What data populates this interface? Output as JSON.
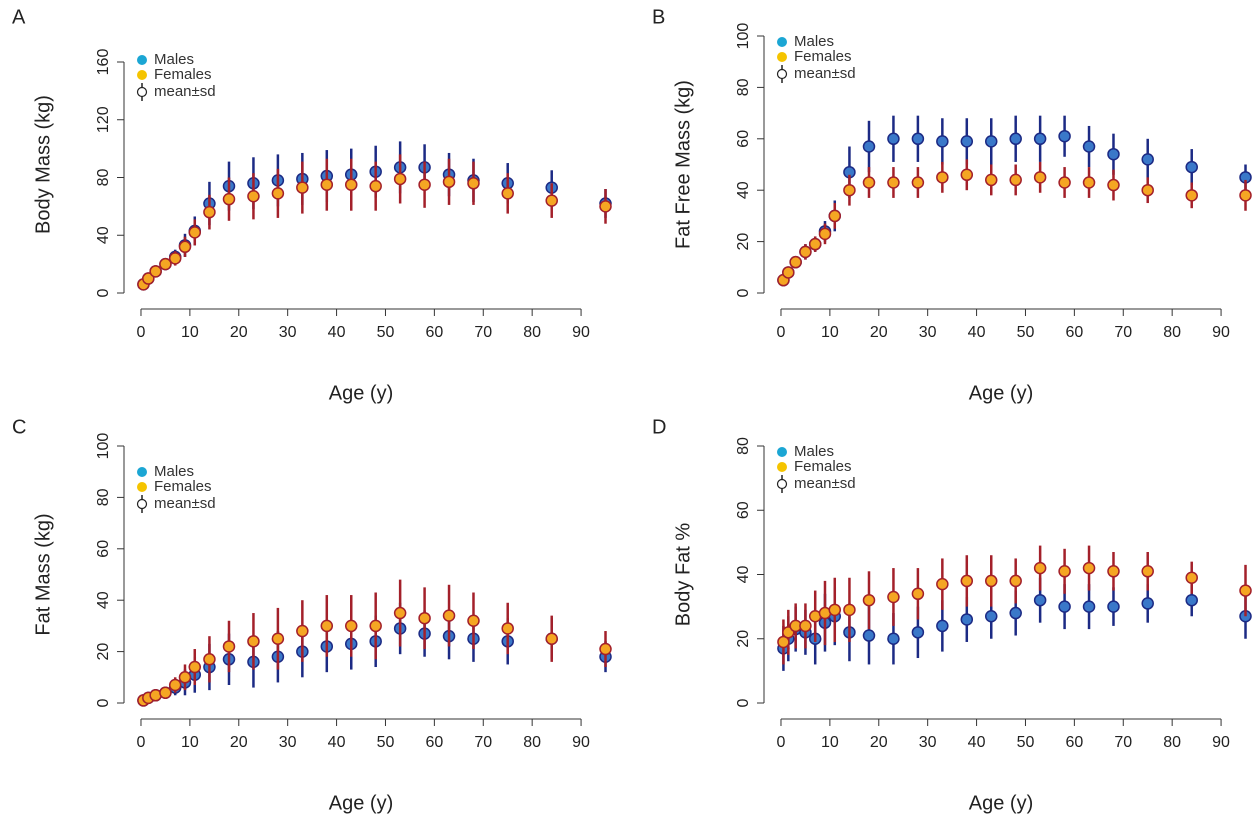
{
  "chart_data": [
    {
      "type": "scatter",
      "panel_label": "A",
      "ylabel": "Body Mass (kg)",
      "xlabel": "Age (y)",
      "error_label": "mean±sd",
      "legend": "top-left",
      "xlim": [
        -2,
        96
      ],
      "ylim": [
        0,
        178
      ],
      "xticks": [
        0,
        10,
        20,
        30,
        40,
        50,
        60,
        70,
        80,
        90
      ],
      "yticks": [
        0,
        40,
        80,
        120,
        160
      ],
      "x": [
        0.5,
        1.5,
        3,
        5,
        7,
        9,
        11,
        14,
        18,
        23,
        28,
        33,
        38,
        43,
        48,
        53,
        58,
        63,
        68,
        75,
        84,
        95
      ],
      "series": [
        {
          "name": "Males",
          "color": "#1ba6d4",
          "mean_color": "#3a78c9",
          "bar_color": "#1c2a84",
          "values": [
            6,
            10,
            15,
            20,
            25,
            33,
            43,
            62,
            74,
            76,
            78,
            79,
            81,
            82,
            84,
            87,
            87,
            82,
            78,
            76,
            73,
            62
          ],
          "sd": [
            2,
            2,
            3,
            4,
            5,
            8,
            10,
            15,
            17,
            18,
            18,
            18,
            18,
            18,
            18,
            18,
            16,
            15,
            15,
            14,
            12,
            10
          ]
        },
        {
          "name": "Females",
          "color": "#f5c400",
          "mean_color": "#f5a623",
          "bar_color": "#a3202a",
          "values": [
            6,
            10,
            15,
            20,
            24,
            32,
            42,
            56,
            65,
            67,
            69,
            73,
            75,
            75,
            74,
            79,
            75,
            77,
            76,
            69,
            64,
            60
          ],
          "sd": [
            2,
            2,
            3,
            4,
            5,
            7,
            9,
            12,
            15,
            16,
            17,
            18,
            18,
            18,
            17,
            17,
            16,
            16,
            15,
            14,
            12,
            12
          ]
        }
      ]
    },
    {
      "type": "scatter",
      "panel_label": "B",
      "ylabel": "Fat Free Mass (kg)",
      "xlabel": "Age (y)",
      "error_label": "mean±sd",
      "legend": "top-left",
      "xlim": [
        -2,
        96
      ],
      "ylim": [
        0,
        100
      ],
      "xticks": [
        0,
        10,
        20,
        30,
        40,
        50,
        60,
        70,
        80,
        90
      ],
      "yticks": [
        0,
        20,
        40,
        60,
        80,
        100
      ],
      "x": [
        0.5,
        1.5,
        3,
        5,
        7,
        9,
        11,
        14,
        18,
        23,
        28,
        33,
        38,
        43,
        48,
        53,
        58,
        63,
        68,
        75,
        84,
        95
      ],
      "series": [
        {
          "name": "Males",
          "color": "#1ba6d4",
          "mean_color": "#3a78c9",
          "bar_color": "#1c2a84",
          "values": [
            5,
            8,
            12,
            16,
            19,
            24,
            30,
            47,
            57,
            60,
            60,
            59,
            59,
            59,
            60,
            60,
            61,
            57,
            54,
            52,
            49,
            45
          ],
          "sd": [
            1,
            2,
            2,
            3,
            3,
            4,
            6,
            10,
            10,
            9,
            9,
            9,
            9,
            9,
            9,
            9,
            8,
            8,
            8,
            8,
            7,
            5
          ]
        },
        {
          "name": "Females",
          "color": "#f5c400",
          "mean_color": "#f5a623",
          "bar_color": "#a3202a",
          "values": [
            5,
            8,
            12,
            16,
            19,
            23,
            30,
            40,
            43,
            43,
            43,
            45,
            46,
            44,
            44,
            45,
            43,
            43,
            42,
            40,
            38,
            38
          ],
          "sd": [
            1,
            2,
            2,
            3,
            3,
            4,
            5,
            6,
            6,
            6,
            6,
            6,
            6,
            6,
            6,
            6,
            6,
            6,
            6,
            5,
            5,
            6
          ]
        }
      ]
    },
    {
      "type": "scatter",
      "panel_label": "C",
      "ylabel": "Fat Mass (kg)",
      "xlabel": "Age (y)",
      "error_label": "mean±sd",
      "legend": "top-left",
      "xlim": [
        -2,
        96
      ],
      "ylim": [
        0,
        100
      ],
      "xticks": [
        0,
        10,
        20,
        30,
        40,
        50,
        60,
        70,
        80,
        90
      ],
      "yticks": [
        0,
        20,
        40,
        60,
        80,
        100
      ],
      "x": [
        0.5,
        1.5,
        3,
        5,
        7,
        9,
        11,
        14,
        18,
        23,
        28,
        33,
        38,
        43,
        48,
        53,
        58,
        63,
        68,
        75,
        84,
        95
      ],
      "series": [
        {
          "name": "Males",
          "color": "#1ba6d4",
          "mean_color": "#3a78c9",
          "bar_color": "#1c2a84",
          "values": [
            1,
            2,
            3,
            4,
            6,
            8,
            11,
            14,
            17,
            16,
            18,
            20,
            22,
            23,
            24,
            29,
            27,
            26,
            25,
            24,
            25,
            18
          ],
          "sd": [
            0.5,
            1,
            1,
            2,
            3,
            5,
            7,
            9,
            10,
            10,
            10,
            10,
            10,
            10,
            10,
            10,
            9,
            9,
            9,
            9,
            8,
            6
          ]
        },
        {
          "name": "Females",
          "color": "#f5c400",
          "mean_color": "#f5a623",
          "bar_color": "#a3202a",
          "values": [
            1,
            2,
            3,
            4,
            7,
            10,
            14,
            17,
            22,
            24,
            25,
            28,
            30,
            30,
            30,
            35,
            33,
            34,
            32,
            29,
            25,
            21
          ],
          "sd": [
            0.5,
            1,
            1,
            2,
            3,
            5,
            7,
            9,
            10,
            11,
            12,
            12,
            12,
            12,
            13,
            13,
            12,
            12,
            11,
            10,
            9,
            7
          ]
        }
      ]
    },
    {
      "type": "scatter",
      "panel_label": "D",
      "ylabel": "Body Fat %",
      "xlabel": "Age (y)",
      "error_label": "mean±sd",
      "legend": "top-left",
      "xlim": [
        -2,
        96
      ],
      "ylim": [
        0,
        80
      ],
      "xticks": [
        0,
        10,
        20,
        30,
        40,
        50,
        60,
        70,
        80,
        90
      ],
      "yticks": [
        0,
        20,
        40,
        60,
        80
      ],
      "x": [
        0.5,
        1.5,
        3,
        5,
        7,
        9,
        11,
        14,
        18,
        23,
        28,
        33,
        38,
        43,
        48,
        53,
        58,
        63,
        68,
        75,
        84,
        95
      ],
      "series": [
        {
          "name": "Males",
          "color": "#1ba6d4",
          "mean_color": "#3a78c9",
          "bar_color": "#1c2a84",
          "values": [
            17,
            20,
            23,
            22,
            20,
            25,
            27,
            22,
            21,
            20,
            22,
            24,
            26,
            27,
            28,
            32,
            30,
            30,
            30,
            31,
            32,
            27
          ],
          "sd": [
            7,
            7,
            7,
            7,
            8,
            9,
            9,
            9,
            9,
            8,
            8,
            8,
            7,
            7,
            7,
            7,
            7,
            7,
            6,
            6,
            5,
            7
          ]
        },
        {
          "name": "Females",
          "color": "#f5c400",
          "mean_color": "#f5a623",
          "bar_color": "#a3202a",
          "values": [
            19,
            22,
            24,
            24,
            27,
            28,
            29,
            29,
            32,
            33,
            34,
            37,
            38,
            38,
            38,
            42,
            41,
            42,
            41,
            41,
            39,
            35
          ],
          "sd": [
            7,
            7,
            7,
            7,
            8,
            10,
            10,
            10,
            9,
            9,
            8,
            8,
            8,
            8,
            7,
            7,
            7,
            7,
            6,
            6,
            5,
            8
          ]
        }
      ]
    }
  ]
}
